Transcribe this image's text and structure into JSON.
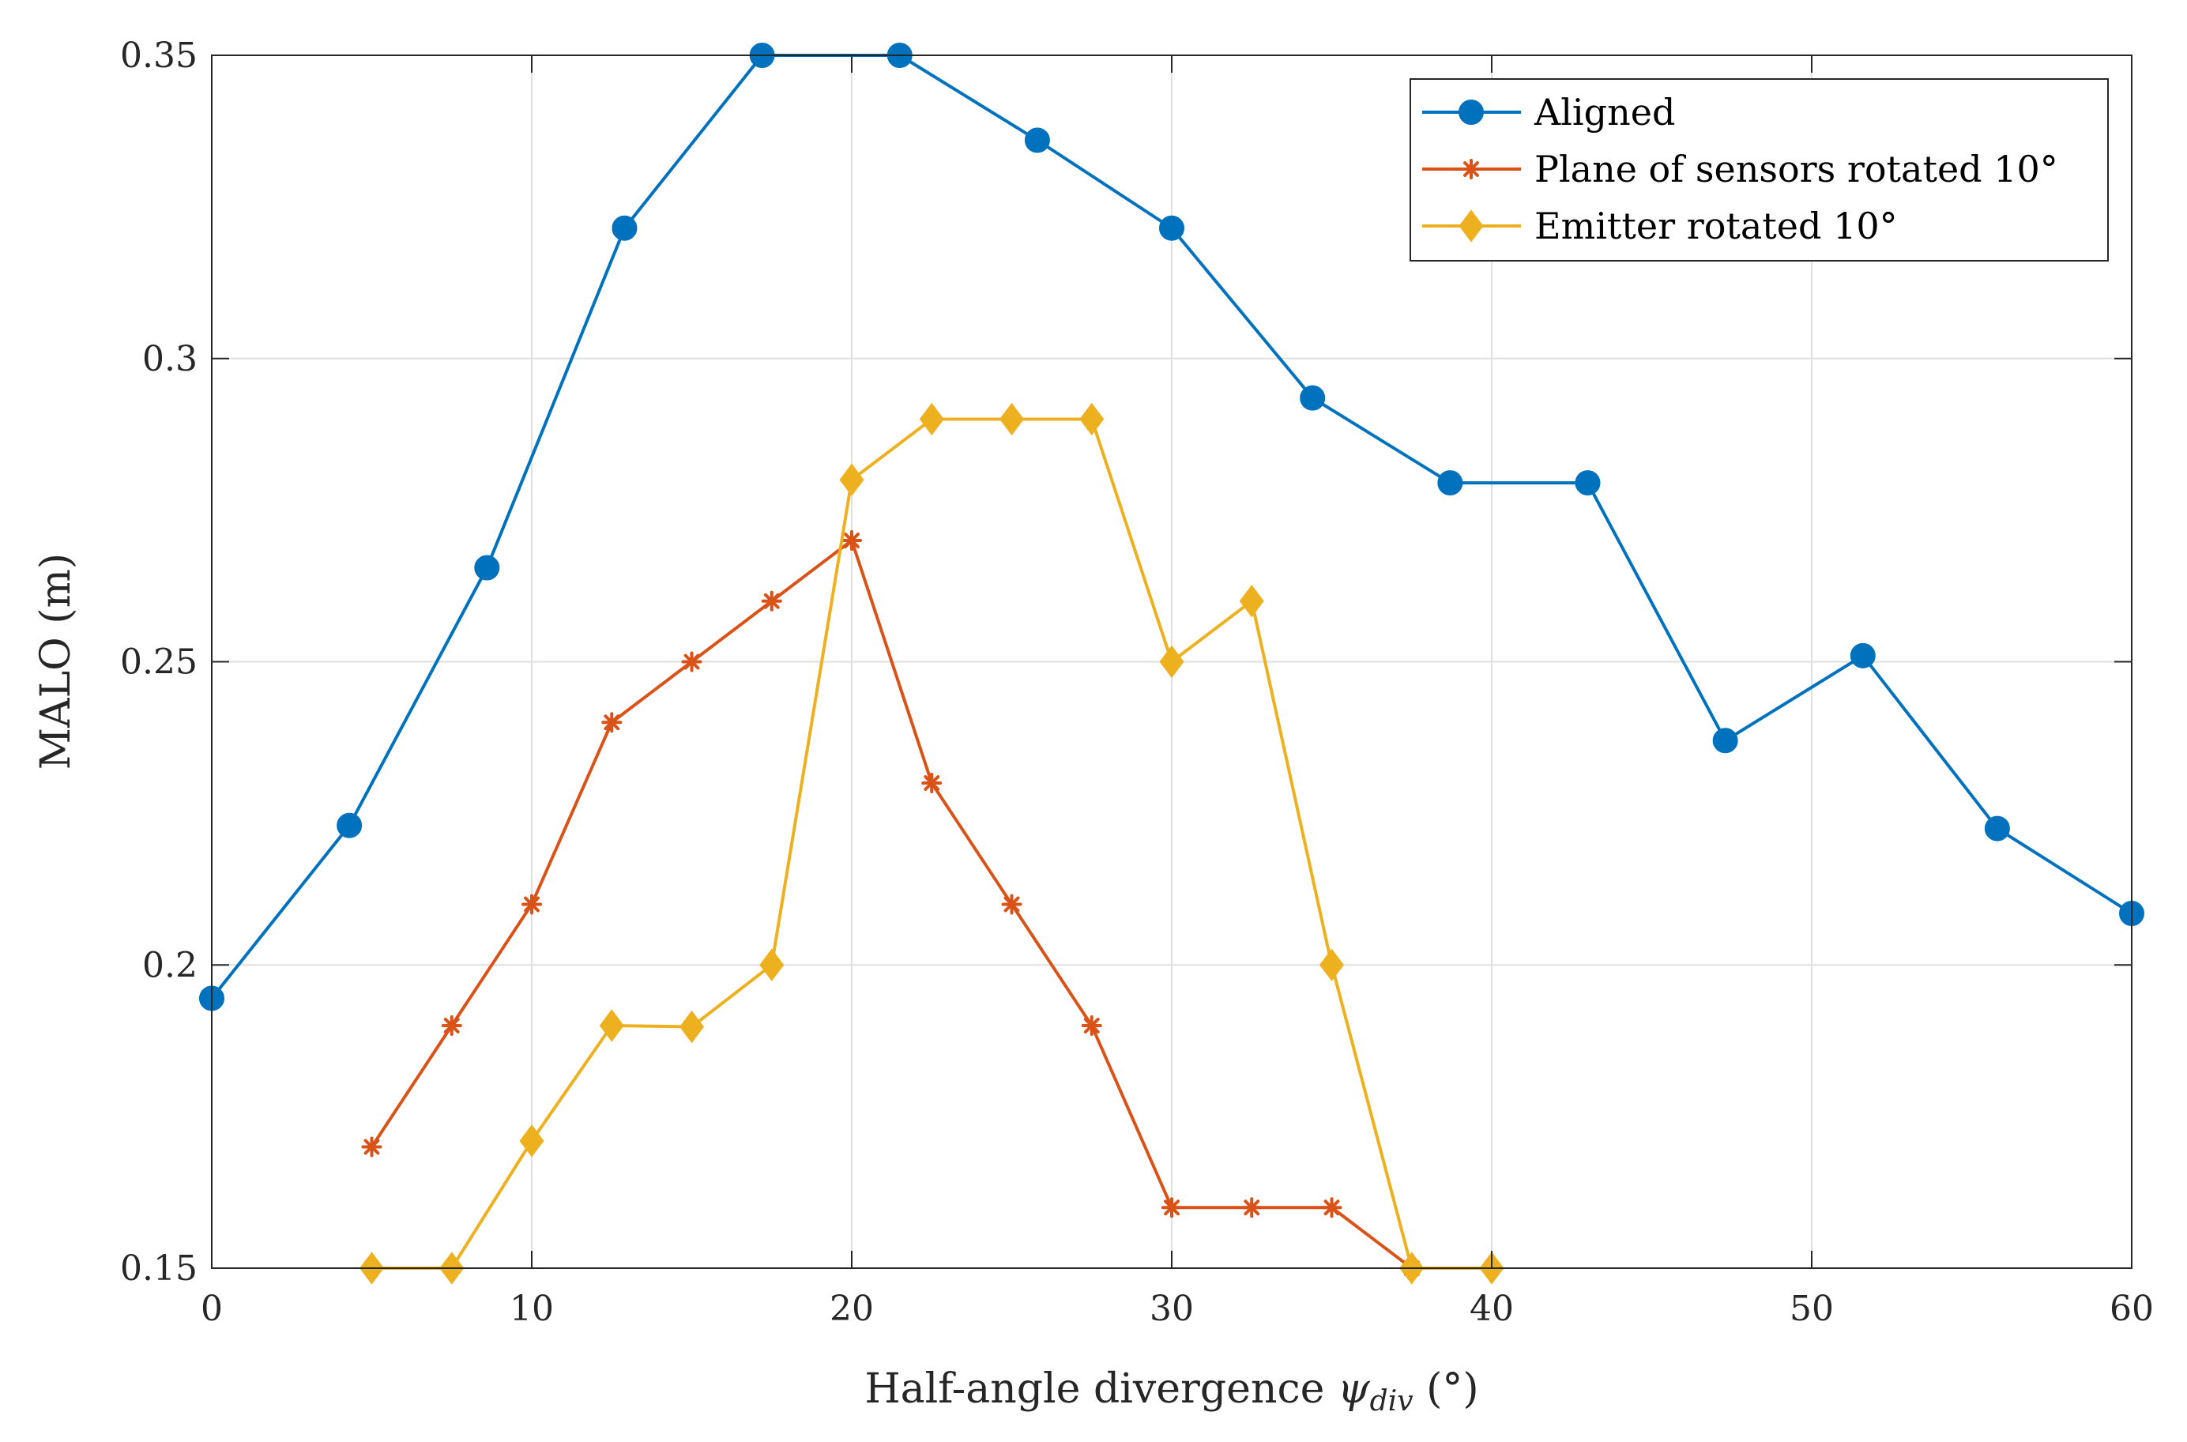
{
  "chart_data": {
    "type": "line",
    "title": "",
    "xlabel": "Half-angle divergence",
    "xlabel_symbol": "ψ",
    "xlabel_subscript": "div",
    "xlabel_unit": "(°)",
    "ylabel": "MALO (m)",
    "xlim": [
      0,
      60
    ],
    "ylim": [
      0.15,
      0.35
    ],
    "xticks": [
      0,
      10,
      20,
      30,
      40,
      50,
      60
    ],
    "yticks": [
      0.15,
      0.2,
      0.25,
      0.3,
      0.35
    ],
    "xtick_labels": [
      "0",
      "10",
      "20",
      "30",
      "40",
      "50",
      "60"
    ],
    "ytick_labels": [
      "0.15",
      "0.2",
      "0.25",
      "0.3",
      "0.35"
    ],
    "grid": true,
    "legend_position": "top-right",
    "series": [
      {
        "name": "Aligned",
        "color": "#0072BD",
        "marker": "circle",
        "x": [
          0,
          4.3,
          8.6,
          12.9,
          17.2,
          21.5,
          25.8,
          30.0,
          34.4,
          38.7,
          43.0,
          47.3,
          51.6,
          55.8,
          60.0
        ],
        "y": [
          0.1945,
          0.223,
          0.2655,
          0.3215,
          0.35,
          0.35,
          0.336,
          0.3215,
          0.2935,
          0.2795,
          0.2795,
          0.237,
          0.251,
          0.2225,
          0.2085
        ]
      },
      {
        "name": "Plane of sensors rotated 10°",
        "color": "#D95319",
        "marker": "asterisk",
        "x": [
          5,
          7.5,
          10,
          12.5,
          15,
          17.5,
          20,
          22.5,
          25,
          27.5,
          30,
          32.5,
          35,
          37.5
        ],
        "y": [
          0.17,
          0.19,
          0.21,
          0.24,
          0.25,
          0.26,
          0.27,
          0.23,
          0.21,
          0.19,
          0.16,
          0.16,
          0.16,
          0.15
        ]
      },
      {
        "name": "Emitter rotated 10°",
        "color": "#EDB120",
        "marker": "diamond",
        "x": [
          5,
          7.5,
          10,
          12.5,
          15,
          17.5,
          20,
          22.5,
          25,
          27.5,
          30,
          32.5,
          35,
          37.5,
          40
        ],
        "y": [
          0.15,
          0.15,
          0.171,
          0.19,
          0.1898,
          0.2,
          0.28,
          0.29,
          0.29,
          0.29,
          0.25,
          0.26,
          0.2,
          0.15,
          0.15
        ]
      }
    ]
  }
}
